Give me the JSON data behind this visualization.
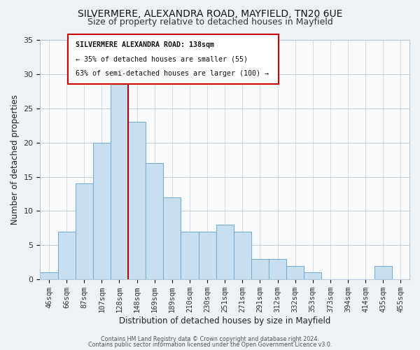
{
  "title": "SILVERMERE, ALEXANDRA ROAD, MAYFIELD, TN20 6UE",
  "subtitle": "Size of property relative to detached houses in Mayfield",
  "xlabel": "Distribution of detached houses by size in Mayfield",
  "ylabel": "Number of detached properties",
  "bar_facecolor": "#c8dff0",
  "bar_edgecolor": "#7aaed0",
  "marker_color": "#aa0000",
  "categories": [
    "46sqm",
    "66sqm",
    "87sqm",
    "107sqm",
    "128sqm",
    "148sqm",
    "169sqm",
    "189sqm",
    "210sqm",
    "230sqm",
    "251sqm",
    "271sqm",
    "291sqm",
    "312sqm",
    "332sqm",
    "353sqm",
    "373sqm",
    "394sqm",
    "414sqm",
    "435sqm",
    "455sqm"
  ],
  "values": [
    1,
    7,
    14,
    20,
    29,
    23,
    17,
    12,
    7,
    7,
    8,
    7,
    3,
    3,
    2,
    1,
    0,
    0,
    0,
    2,
    0
  ],
  "ylim": [
    0,
    35
  ],
  "yticks": [
    0,
    5,
    10,
    15,
    20,
    25,
    30,
    35
  ],
  "annotation_title": "SILVERMERE ALEXANDRA ROAD: 138sqm",
  "annotation_line1": "← 35% of detached houses are smaller (55)",
  "annotation_line2": "63% of semi-detached houses are larger (100) →",
  "footer1": "Contains HM Land Registry data © Crown copyright and database right 2024.",
  "footer2": "Contains public sector information licensed under the Open Government Licence v3.0.",
  "bg_color": "#edf2f7",
  "plot_bg_color": "#f8fafc",
  "grid_color": "#b8c8d8",
  "title_fontsize": 10,
  "subtitle_fontsize": 9,
  "axis_label_fontsize": 8.5,
  "tick_fontsize": 7.5
}
